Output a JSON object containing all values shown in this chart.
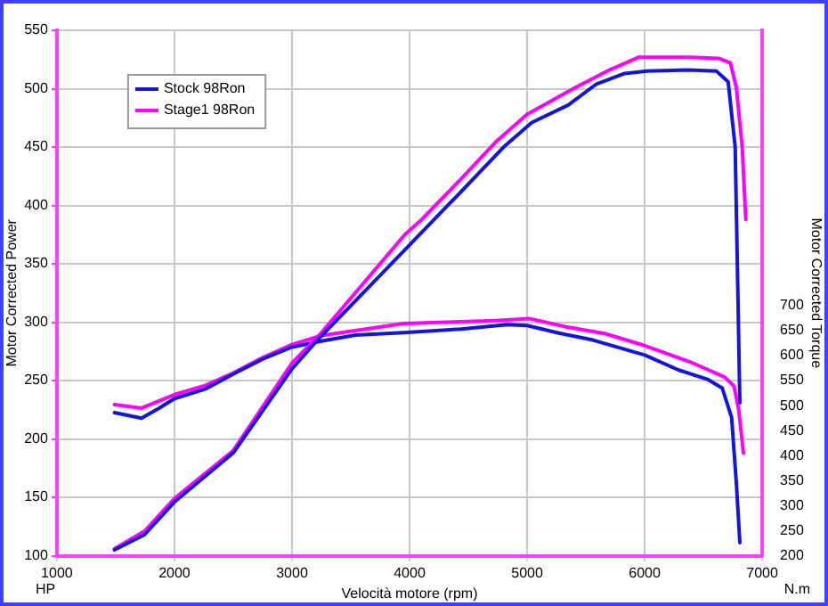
{
  "chart_data": {
    "type": "line",
    "xlabel": "Velocità motore (rpm)",
    "ylabel": "Motor Corrected Power",
    "y2label": "Motor Corrected Torque",
    "annotations": [
      "HP",
      "N.m"
    ],
    "xlim": [
      1000,
      7000
    ],
    "xticks": [
      1000,
      2000,
      3000,
      4000,
      5000,
      6000,
      7000
    ],
    "ylim": [
      100,
      550
    ],
    "yticks": [
      100,
      150,
      200,
      250,
      300,
      350,
      400,
      450,
      500,
      550
    ],
    "y2lim": [
      200,
      1250
    ],
    "y2ticks": [
      200,
      250,
      300,
      350,
      400,
      450,
      500,
      550,
      600,
      650,
      700
    ],
    "grid": true,
    "legend": "top left",
    "marker": "none",
    "line_style": "solid",
    "series": [
      {
        "name": "Stock 98Ron",
        "color": "#1414e0",
        "x": [
          1490,
          1745,
          2000,
          2500,
          3000,
          3200,
          3960,
          4104,
          4450,
          4800,
          5040,
          5350,
          5590,
          5830,
          6020,
          6370,
          6610,
          6710,
          6770,
          6810
        ],
        "values": [
          105,
          118,
          146,
          188,
          260,
          283,
          362,
          377,
          413,
          450,
          471,
          486,
          504,
          513,
          515,
          516,
          515,
          506,
          450,
          231
        ]
      },
      {
        "name": "Stage1 98Ron",
        "color": "#ff00ff",
        "x": [
          1490,
          1745,
          2000,
          2500,
          3000,
          3250,
          3960,
          4104,
          4450,
          4740,
          5000,
          5410,
          5700,
          5950,
          6390,
          6630,
          6730,
          6780,
          6830,
          6860
        ],
        "values": [
          106,
          121,
          149,
          190,
          265,
          291,
          375,
          388,
          424,
          455,
          478,
          501,
          516,
          527,
          527,
          526,
          522,
          501,
          450,
          388
        ]
      },
      {
        "color": "#1414e0",
        "axis": "y2",
        "x": [
          1490,
          1720,
          1870,
          2000,
          2260,
          2500,
          2750,
          3000,
          3250,
          3540,
          3950,
          4440,
          4830,
          5000,
          5270,
          5560,
          6000,
          6290,
          6540,
          6660,
          6740,
          6780,
          6810
        ],
        "values": [
          486,
          475,
          495,
          514,
          533,
          563,
          593,
          617,
          629,
          641,
          646,
          653,
          662,
          660,
          645,
          631,
          601,
          571,
          552,
          535,
          476,
          345,
          226
        ]
      },
      {
        "color": "#ff00ff",
        "axis": "y2",
        "x": [
          1490,
          1720,
          2000,
          2260,
          2500,
          2750,
          3000,
          3250,
          3950,
          4730,
          5020,
          5320,
          5660,
          6000,
          6390,
          6680,
          6760,
          6800,
          6840
        ],
        "values": [
          502,
          495,
          522,
          540,
          565,
          596,
          622,
          640,
          664,
          670,
          674,
          658,
          644,
          620,
          587,
          557,
          539,
          492,
          405
        ]
      }
    ]
  }
}
